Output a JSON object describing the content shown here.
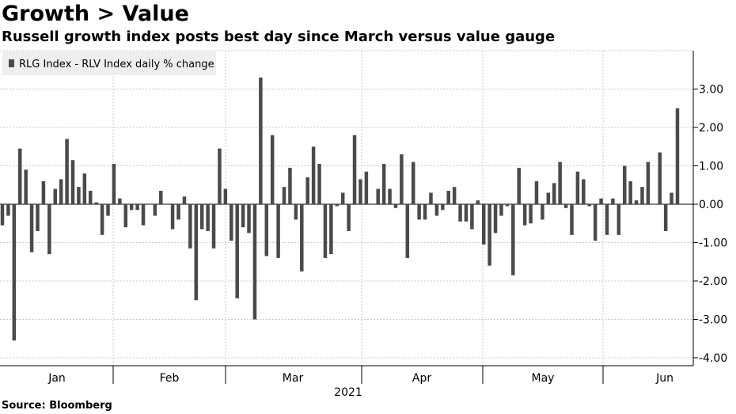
{
  "header": {
    "title": "Growth > Value",
    "subtitle": "Russell growth index posts best day since March versus value gauge"
  },
  "footer": {
    "source": "Source: Bloomberg"
  },
  "colors": {
    "bar": "#4a4a4a",
    "grid": "#c8c8c8",
    "legend_bg": "#eeeeee"
  },
  "chart_data": {
    "type": "bar",
    "title": "Growth > Value",
    "subtitle": "Russell growth index posts best day since March versus value gauge",
    "legend": [
      "RLG Index - RLV Index daily % change"
    ],
    "legend_position": "top-left",
    "xlabel": "2021",
    "ylabel": "",
    "ylim": [
      -4.0,
      4.0
    ],
    "yticks": [
      3.0,
      2.0,
      1.0,
      0.0,
      -1.0,
      -2.0,
      -3.0,
      -4.0
    ],
    "ytick_labels": [
      "3.00",
      "2.00",
      "1.00",
      "0.00",
      "-1.00",
      "-2.00",
      "-3.00",
      "-4.00"
    ],
    "y_axis_side": "right",
    "grid": true,
    "months": [
      "Jan",
      "Feb",
      "Mar",
      "Apr",
      "May",
      "Jun"
    ],
    "series": [
      {
        "name": "RLG Index - RLV Index daily % change",
        "values": [
          -0.55,
          -0.3,
          -3.55,
          1.45,
          0.9,
          -1.25,
          -0.7,
          0.6,
          -1.3,
          0.4,
          0.65,
          1.7,
          1.15,
          0.45,
          0.8,
          0.35,
          0.05,
          -0.8,
          -0.3,
          1.05,
          0.15,
          -0.6,
          -0.15,
          -0.15,
          -0.55,
          0.0,
          -0.3,
          0.35,
          0.0,
          -0.65,
          -0.4,
          0.2,
          -1.15,
          -2.5,
          -0.65,
          -0.7,
          -1.15,
          1.45,
          0.4,
          -0.95,
          -2.45,
          -0.6,
          -0.75,
          -3.0,
          3.3,
          -1.35,
          1.8,
          -1.4,
          0.45,
          0.95,
          -0.4,
          -1.75,
          0.7,
          1.5,
          1.05,
          -1.4,
          -1.3,
          -0.05,
          0.3,
          -0.7,
          1.8,
          0.65,
          0.85,
          0.0,
          0.4,
          1.05,
          0.4,
          -0.1,
          1.3,
          -1.4,
          1.1,
          -0.4,
          -0.4,
          0.3,
          -0.3,
          -0.15,
          0.35,
          0.45,
          -0.45,
          -0.45,
          -0.65,
          0.1,
          -1.05,
          -1.6,
          -0.75,
          -0.3,
          -0.05,
          -1.85,
          0.95,
          -0.55,
          -0.5,
          0.6,
          -0.4,
          0.3,
          0.55,
          1.1,
          -0.1,
          -0.8,
          0.85,
          0.65,
          -0.05,
          -0.95,
          0.15,
          -0.8,
          0.15,
          -0.8,
          1.0,
          0.6,
          0.1,
          0.45,
          1.1,
          0.0,
          1.35,
          -0.7,
          0.3,
          2.5
        ]
      }
    ]
  }
}
